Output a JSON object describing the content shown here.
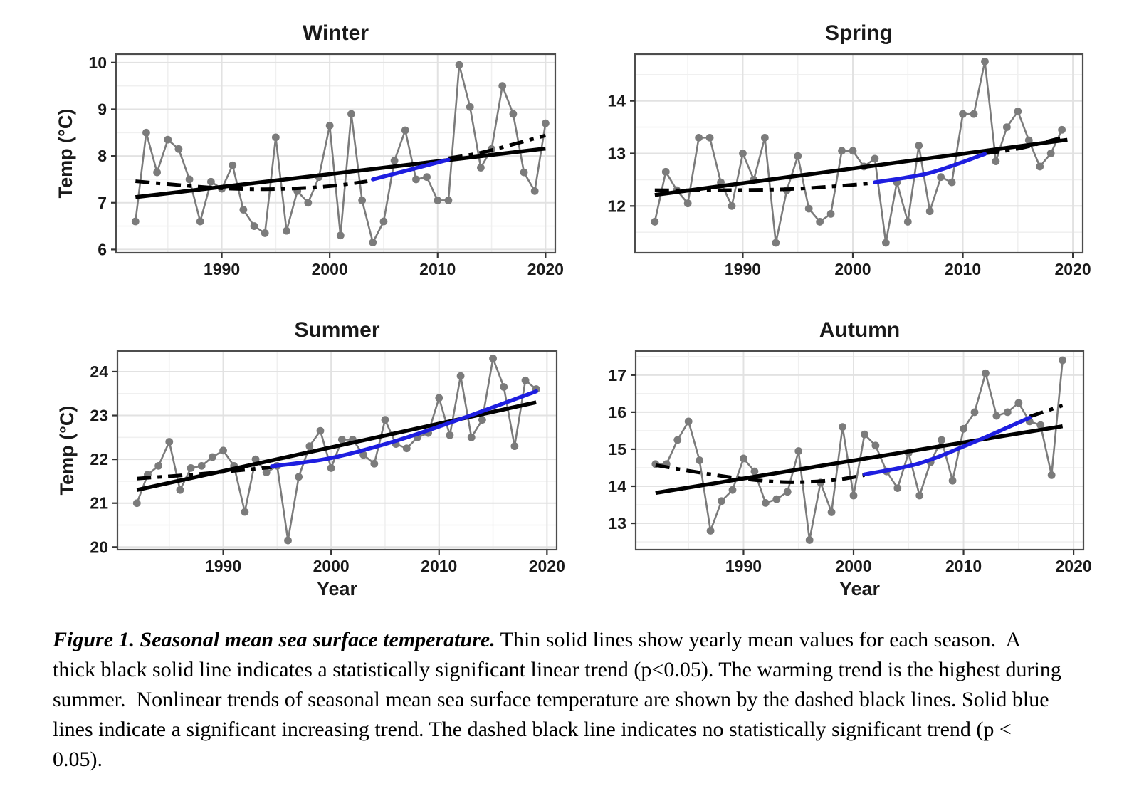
{
  "figure": {
    "caption": {
      "lead": "Figure 1. Seasonal mean sea surface temperature.",
      "body": " Thin solid lines show yearly mean values for each season.  A thick black solid line indicates a statistically significant linear trend (p<0.05). The warming trend is the highest during summer.  Nonlinear trends of seasonal mean sea surface temperature are shown by the dashed black lines. Solid blue lines indicate a significant increasing trend. The dashed black line indicates no statistically significant trend (p < 0.05)."
    },
    "colors": {
      "series": "#7b7b7b",
      "trend_black": "#000000",
      "trend_blue": "#1e1ee0",
      "grid_major": "#e2e2e2",
      "grid_minor": "#f0f0f0",
      "panel_border": "#4d4d4d",
      "tick": "#333333",
      "text": "#1a1a1a"
    }
  },
  "chart_data": [
    {
      "type": "line",
      "title": "Winter",
      "ylabel": "Temp (°C)",
      "xlabel": null,
      "yticks": [
        6,
        7,
        8,
        9,
        10
      ],
      "xticks": [
        1990,
        2000,
        2010,
        2020
      ],
      "ylim": [
        5.93,
        10.18
      ],
      "xlim": [
        1980.2,
        2020.9
      ],
      "grid": true,
      "legend": "none",
      "series": [
        {
          "name": "yearly mean",
          "style": "data",
          "x": [
            1982,
            1983,
            1984,
            1985,
            1986,
            1987,
            1988,
            1989,
            1990,
            1991,
            1992,
            1993,
            1994,
            1995,
            1996,
            1997,
            1998,
            1999,
            2000,
            2001,
            2002,
            2003,
            2004,
            2005,
            2006,
            2007,
            2008,
            2009,
            2010,
            2011,
            2012,
            2013,
            2014,
            2015,
            2016,
            2017,
            2018,
            2019,
            2020
          ],
          "values": [
            6.6,
            8.5,
            7.65,
            8.35,
            8.15,
            7.5,
            6.6,
            7.45,
            7.3,
            7.8,
            6.85,
            6.5,
            6.35,
            8.4,
            6.4,
            7.25,
            7.0,
            7.55,
            8.65,
            6.3,
            8.9,
            7.05,
            6.15,
            6.6,
            7.9,
            8.55,
            7.5,
            7.55,
            7.05,
            7.05,
            9.95,
            9.05,
            7.75,
            8.15,
            9.5,
            8.9,
            7.65,
            7.25,
            8.7
          ]
        },
        {
          "name": "significant linear trend (p<0.05)",
          "style": "linear",
          "x": [
            1982,
            2020
          ],
          "values": [
            7.12,
            8.16
          ]
        },
        {
          "name": "nonlinear trend (no significant trend)",
          "style": "dashed",
          "x": [
            1982,
            1986,
            1990,
            1994,
            1998,
            2001,
            2003.5
          ],
          "values": [
            7.46,
            7.38,
            7.31,
            7.29,
            7.32,
            7.38,
            7.46
          ]
        },
        {
          "name": "nonlinear trend (significant increase)",
          "style": "blue",
          "x": [
            2004,
            2007,
            2011
          ],
          "values": [
            7.5,
            7.68,
            7.92
          ]
        },
        {
          "name": "nonlinear trend (no significant trend)",
          "style": "dashed",
          "x": [
            2011,
            2014,
            2017,
            2020
          ],
          "values": [
            7.95,
            8.07,
            8.25,
            8.44
          ]
        }
      ]
    },
    {
      "type": "line",
      "title": "Spring",
      "ylabel": null,
      "xlabel": null,
      "yticks": [
        12,
        13,
        14
      ],
      "xticks": [
        1990,
        2000,
        2010,
        2020
      ],
      "ylim": [
        11.11,
        14.89
      ],
      "xlim": [
        1980.2,
        2020.9
      ],
      "grid": true,
      "legend": "none",
      "series": [
        {
          "name": "yearly mean",
          "style": "data",
          "x": [
            1982,
            1983,
            1984,
            1985,
            1986,
            1987,
            1988,
            1989,
            1990,
            1991,
            1992,
            1993,
            1994,
            1995,
            1996,
            1997,
            1998,
            1999,
            2000,
            2001,
            2002,
            2003,
            2004,
            2005,
            2006,
            2007,
            2008,
            2009,
            2010,
            2011,
            2012,
            2013,
            2014,
            2015,
            2016,
            2017,
            2018,
            2019
          ],
          "values": [
            11.7,
            12.65,
            12.3,
            12.05,
            13.3,
            13.3,
            12.45,
            12.0,
            13.0,
            12.5,
            13.3,
            11.3,
            12.3,
            12.95,
            11.95,
            11.7,
            11.85,
            13.05,
            13.05,
            12.75,
            12.9,
            11.3,
            12.45,
            11.7,
            13.15,
            11.9,
            12.55,
            12.45,
            13.75,
            13.75,
            14.75,
            12.85,
            13.5,
            13.8,
            13.25,
            12.75,
            13.0,
            13.45
          ]
        },
        {
          "name": "significant linear trend (p<0.05)",
          "style": "linear",
          "x": [
            1982,
            2019.5
          ],
          "values": [
            12.21,
            13.26
          ]
        },
        {
          "name": "nonlinear trend (no significant trend)",
          "style": "dashed",
          "x": [
            1982,
            1988,
            1994,
            1998,
            2001.5
          ],
          "values": [
            12.3,
            12.3,
            12.32,
            12.37,
            12.43
          ]
        },
        {
          "name": "nonlinear trend (significant increase)",
          "style": "blue",
          "x": [
            2002,
            2007,
            2012
          ],
          "values": [
            12.45,
            12.63,
            12.99
          ]
        },
        {
          "name": "nonlinear trend (no significant trend)",
          "style": "dashed",
          "x": [
            2012,
            2015,
            2019
          ],
          "values": [
            13.0,
            13.09,
            13.3
          ]
        }
      ]
    },
    {
      "type": "line",
      "title": "Summer",
      "ylabel": "Temp (°C)",
      "xlabel": "Year",
      "yticks": [
        20,
        21,
        22,
        23,
        24
      ],
      "xticks": [
        1990,
        2000,
        2010,
        2020
      ],
      "ylim": [
        19.94,
        24.47
      ],
      "xlim": [
        1980.2,
        2020.9
      ],
      "grid": true,
      "legend": "none",
      "series": [
        {
          "name": "yearly mean",
          "style": "data",
          "x": [
            1982,
            1983,
            1984,
            1985,
            1986,
            1987,
            1988,
            1989,
            1990,
            1991,
            1992,
            1993,
            1994,
            1995,
            1996,
            1997,
            1998,
            1999,
            2000,
            2001,
            2002,
            2003,
            2004,
            2005,
            2006,
            2007,
            2008,
            2009,
            2010,
            2011,
            2012,
            2013,
            2014,
            2015,
            2016,
            2017,
            2018,
            2019
          ],
          "values": [
            21.0,
            21.65,
            21.85,
            22.4,
            21.3,
            21.8,
            21.85,
            22.05,
            22.2,
            21.85,
            20.8,
            22.0,
            21.7,
            21.85,
            20.15,
            21.6,
            22.3,
            22.65,
            21.8,
            22.45,
            22.45,
            22.1,
            21.9,
            22.9,
            22.35,
            22.25,
            22.5,
            22.6,
            23.4,
            22.55,
            23.9,
            22.5,
            22.9,
            24.3,
            23.65,
            22.3,
            23.8,
            23.6
          ]
        },
        {
          "name": "significant linear trend (p<0.05), highest warming",
          "style": "linear",
          "x": [
            1982,
            2019
          ],
          "values": [
            21.3,
            23.3
          ]
        },
        {
          "name": "nonlinear trend (no significant trend)",
          "style": "dashed",
          "x": [
            1982,
            1988,
            1994.5
          ],
          "values": [
            21.56,
            21.67,
            21.82
          ]
        },
        {
          "name": "nonlinear trend (significant increase)",
          "style": "blue",
          "x": [
            1994.5,
            2000,
            2006,
            2012,
            2019
          ],
          "values": [
            21.84,
            22.03,
            22.42,
            22.92,
            23.55
          ]
        }
      ]
    },
    {
      "type": "line",
      "title": "Autumn",
      "ylabel": null,
      "xlabel": "Year",
      "yticks": [
        13,
        14,
        15,
        16,
        17
      ],
      "xticks": [
        1990,
        2000,
        2010,
        2020
      ],
      "ylim": [
        12.29,
        17.65
      ],
      "xlim": [
        1980.2,
        2020.9
      ],
      "grid": true,
      "legend": "none",
      "series": [
        {
          "name": "yearly mean",
          "style": "data",
          "x": [
            1982,
            1983,
            1984,
            1985,
            1986,
            1987,
            1988,
            1989,
            1990,
            1991,
            1992,
            1993,
            1994,
            1995,
            1996,
            1997,
            1998,
            1999,
            2000,
            2001,
            2002,
            2003,
            2004,
            2005,
            2006,
            2007,
            2008,
            2009,
            2010,
            2011,
            2012,
            2013,
            2014,
            2015,
            2016,
            2017,
            2018,
            2019
          ],
          "values": [
            14.6,
            14.6,
            15.25,
            15.75,
            14.7,
            12.8,
            13.6,
            13.9,
            14.75,
            14.4,
            13.55,
            13.65,
            13.85,
            14.95,
            12.55,
            14.1,
            13.3,
            15.6,
            13.75,
            15.4,
            15.1,
            14.4,
            13.95,
            14.9,
            13.75,
            14.65,
            15.25,
            14.15,
            15.55,
            16.0,
            17.05,
            15.9,
            16.0,
            16.25,
            15.75,
            15.65,
            14.3,
            17.4
          ]
        },
        {
          "name": "significant linear trend (p<0.05)",
          "style": "linear",
          "x": [
            1982,
            2019
          ],
          "values": [
            13.82,
            15.62
          ]
        },
        {
          "name": "nonlinear trend (no significant trend)",
          "style": "dashed",
          "x": [
            1982,
            1986,
            1990,
            1994,
            1998,
            2001
          ],
          "values": [
            14.57,
            14.37,
            14.2,
            14.11,
            14.16,
            14.3
          ]
        },
        {
          "name": "nonlinear trend (significant increase)",
          "style": "blue",
          "x": [
            2001,
            2006,
            2011,
            2016
          ],
          "values": [
            14.32,
            14.62,
            15.2,
            15.85
          ]
        },
        {
          "name": "nonlinear trend (no significant trend)",
          "style": "dashed",
          "x": [
            2016,
            2019
          ],
          "values": [
            15.88,
            16.18
          ]
        }
      ]
    }
  ]
}
